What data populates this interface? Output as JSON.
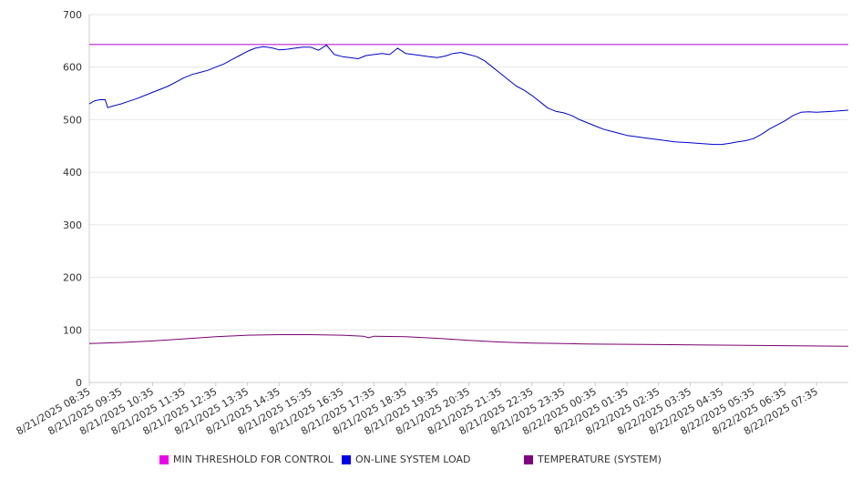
{
  "chart_data": {
    "type": "line",
    "ylim": [
      0,
      700
    ],
    "yticks": [
      "0",
      "100",
      "200",
      "300",
      "400",
      "500",
      "600",
      "700"
    ],
    "grid": true,
    "legend_placement": "bottom",
    "x_labels": [
      "8/21/2025 08:35",
      "8/21/2025 09:35",
      "8/21/2025 10:35",
      "8/21/2025 11:35",
      "8/21/2025 12:35",
      "8/21/2025 13:35",
      "8/21/2025 14:35",
      "8/21/2025 15:35",
      "8/21/2025 16:35",
      "8/21/2025 17:35",
      "8/21/2025 18:35",
      "8/21/2025 19:35",
      "8/21/2025 20:35",
      "8/21/2025 21:35",
      "8/21/2025 22:35",
      "8/21/2025 23:35",
      "8/22/2025 00:35",
      "8/22/2025 01:35",
      "8/22/2025 02:35",
      "8/22/2025 03:35",
      "8/22/2025 04:35",
      "8/22/2025 05:35",
      "8/22/2025 06:35",
      "8/22/2025 07:35"
    ],
    "x_end": "8/22/2025 08:35",
    "series": [
      {
        "name": "MIN THRESHOLD FOR CONTROL",
        "color": "#b000d0",
        "legend_color": "#ee00ee",
        "points": [
          [
            "8/21/2025 08:35",
            643
          ],
          [
            "8/22/2025 08:35",
            643
          ]
        ]
      },
      {
        "name": "ON-LINE SYSTEM LOAD",
        "color": "#0000cc",
        "legend_color": "#0000ee",
        "points": [
          [
            "8/21/2025 08:35",
            530
          ],
          [
            "8/21/2025 08:45",
            536
          ],
          [
            "8/21/2025 08:55",
            538
          ],
          [
            "8/21/2025 09:05",
            538
          ],
          [
            "8/21/2025 09:10",
            523
          ],
          [
            "8/21/2025 09:20",
            526
          ],
          [
            "8/21/2025 09:35",
            530
          ],
          [
            "8/21/2025 09:50",
            535
          ],
          [
            "8/21/2025 10:05",
            540
          ],
          [
            "8/21/2025 10:20",
            546
          ],
          [
            "8/21/2025 10:35",
            552
          ],
          [
            "8/21/2025 10:50",
            558
          ],
          [
            "8/21/2025 11:05",
            564
          ],
          [
            "8/21/2025 11:20",
            572
          ],
          [
            "8/21/2025 11:35",
            580
          ],
          [
            "8/21/2025 11:50",
            586
          ],
          [
            "8/21/2025 12:05",
            590
          ],
          [
            "8/21/2025 12:20",
            594
          ],
          [
            "8/21/2025 12:35",
            600
          ],
          [
            "8/21/2025 12:50",
            606
          ],
          [
            "8/21/2025 13:05",
            614
          ],
          [
            "8/21/2025 13:20",
            622
          ],
          [
            "8/21/2025 13:35",
            630
          ],
          [
            "8/21/2025 13:50",
            636
          ],
          [
            "8/21/2025 14:05",
            639
          ],
          [
            "8/21/2025 14:20",
            637
          ],
          [
            "8/21/2025 14:35",
            633
          ],
          [
            "8/21/2025 14:50",
            634
          ],
          [
            "8/21/2025 15:05",
            636
          ],
          [
            "8/21/2025 15:20",
            638
          ],
          [
            "8/21/2025 15:35",
            638
          ],
          [
            "8/21/2025 15:50",
            632
          ],
          [
            "8/21/2025 16:05",
            642
          ],
          [
            "8/21/2025 16:20",
            624
          ],
          [
            "8/21/2025 16:35",
            620
          ],
          [
            "8/21/2025 16:50",
            618
          ],
          [
            "8/21/2025 17:05",
            616
          ],
          [
            "8/21/2025 17:20",
            622
          ],
          [
            "8/21/2025 17:35",
            624
          ],
          [
            "8/21/2025 17:50",
            626
          ],
          [
            "8/21/2025 18:05",
            624
          ],
          [
            "8/21/2025 18:20",
            636
          ],
          [
            "8/21/2025 18:35",
            626
          ],
          [
            "8/21/2025 18:50",
            624
          ],
          [
            "8/21/2025 19:05",
            622
          ],
          [
            "8/21/2025 19:20",
            620
          ],
          [
            "8/21/2025 19:35",
            618
          ],
          [
            "8/21/2025 19:50",
            621
          ],
          [
            "8/21/2025 20:05",
            626
          ],
          [
            "8/21/2025 20:20",
            628
          ],
          [
            "8/21/2025 20:35",
            624
          ],
          [
            "8/21/2025 20:50",
            620
          ],
          [
            "8/21/2025 21:05",
            612
          ],
          [
            "8/21/2025 21:20",
            600
          ],
          [
            "8/21/2025 21:35",
            588
          ],
          [
            "8/21/2025 21:50",
            576
          ],
          [
            "8/21/2025 22:05",
            564
          ],
          [
            "8/21/2025 22:20",
            556
          ],
          [
            "8/21/2025 22:35",
            546
          ],
          [
            "8/21/2025 22:50",
            534
          ],
          [
            "8/21/2025 23:05",
            522
          ],
          [
            "8/21/2025 23:20",
            516
          ],
          [
            "8/21/2025 23:35",
            513
          ],
          [
            "8/21/2025 23:50",
            508
          ],
          [
            "8/22/2025 00:05",
            500
          ],
          [
            "8/22/2025 00:20",
            494
          ],
          [
            "8/22/2025 00:35",
            488
          ],
          [
            "8/22/2025 00:50",
            482
          ],
          [
            "8/22/2025 01:05",
            478
          ],
          [
            "8/22/2025 01:20",
            474
          ],
          [
            "8/22/2025 01:35",
            470
          ],
          [
            "8/22/2025 01:50",
            468
          ],
          [
            "8/22/2025 02:05",
            466
          ],
          [
            "8/22/2025 02:20",
            464
          ],
          [
            "8/22/2025 02:35",
            462
          ],
          [
            "8/22/2025 02:50",
            460
          ],
          [
            "8/22/2025 03:05",
            458
          ],
          [
            "8/22/2025 03:20",
            457
          ],
          [
            "8/22/2025 03:35",
            456
          ],
          [
            "8/22/2025 03:50",
            455
          ],
          [
            "8/22/2025 04:05",
            454
          ],
          [
            "8/22/2025 04:20",
            453
          ],
          [
            "8/22/2025 04:35",
            453
          ],
          [
            "8/22/2025 04:50",
            455
          ],
          [
            "8/22/2025 05:05",
            458
          ],
          [
            "8/22/2025 05:20",
            460
          ],
          [
            "8/22/2025 05:35",
            464
          ],
          [
            "8/22/2025 05:50",
            472
          ],
          [
            "8/22/2025 06:05",
            482
          ],
          [
            "8/22/2025 06:20",
            490
          ],
          [
            "8/22/2025 06:35",
            498
          ],
          [
            "8/22/2025 06:50",
            508
          ],
          [
            "8/22/2025 07:05",
            514
          ],
          [
            "8/22/2025 07:20",
            515
          ],
          [
            "8/22/2025 07:35",
            514
          ],
          [
            "8/22/2025 07:50",
            515
          ],
          [
            "8/22/2025 08:05",
            516
          ],
          [
            "8/22/2025 08:20",
            517
          ],
          [
            "8/22/2025 08:35",
            518
          ]
        ]
      },
      {
        "name": "TEMPERATURE (SYSTEM)",
        "color": "#7a0070",
        "legend_color": "#800080",
        "points": [
          [
            "8/21/2025 08:35",
            74
          ],
          [
            "8/21/2025 09:35",
            76
          ],
          [
            "8/21/2025 10:35",
            79
          ],
          [
            "8/21/2025 11:35",
            83
          ],
          [
            "8/21/2025 12:35",
            87
          ],
          [
            "8/21/2025 13:35",
            90
          ],
          [
            "8/21/2025 14:35",
            91
          ],
          [
            "8/21/2025 15:35",
            91
          ],
          [
            "8/21/2025 16:35",
            90
          ],
          [
            "8/21/2025 17:15",
            88
          ],
          [
            "8/21/2025 17:25",
            85
          ],
          [
            "8/21/2025 17:35",
            88
          ],
          [
            "8/21/2025 18:35",
            87
          ],
          [
            "8/21/2025 19:35",
            84
          ],
          [
            "8/21/2025 20:35",
            80
          ],
          [
            "8/21/2025 21:35",
            77
          ],
          [
            "8/21/2025 22:35",
            75
          ],
          [
            "8/21/2025 23:35",
            74
          ],
          [
            "8/22/2025 00:35",
            73
          ],
          [
            "8/22/2025 02:35",
            72
          ],
          [
            "8/22/2025 04:35",
            71
          ],
          [
            "8/22/2025 06:35",
            70
          ],
          [
            "8/22/2025 08:35",
            69
          ]
        ]
      }
    ]
  }
}
